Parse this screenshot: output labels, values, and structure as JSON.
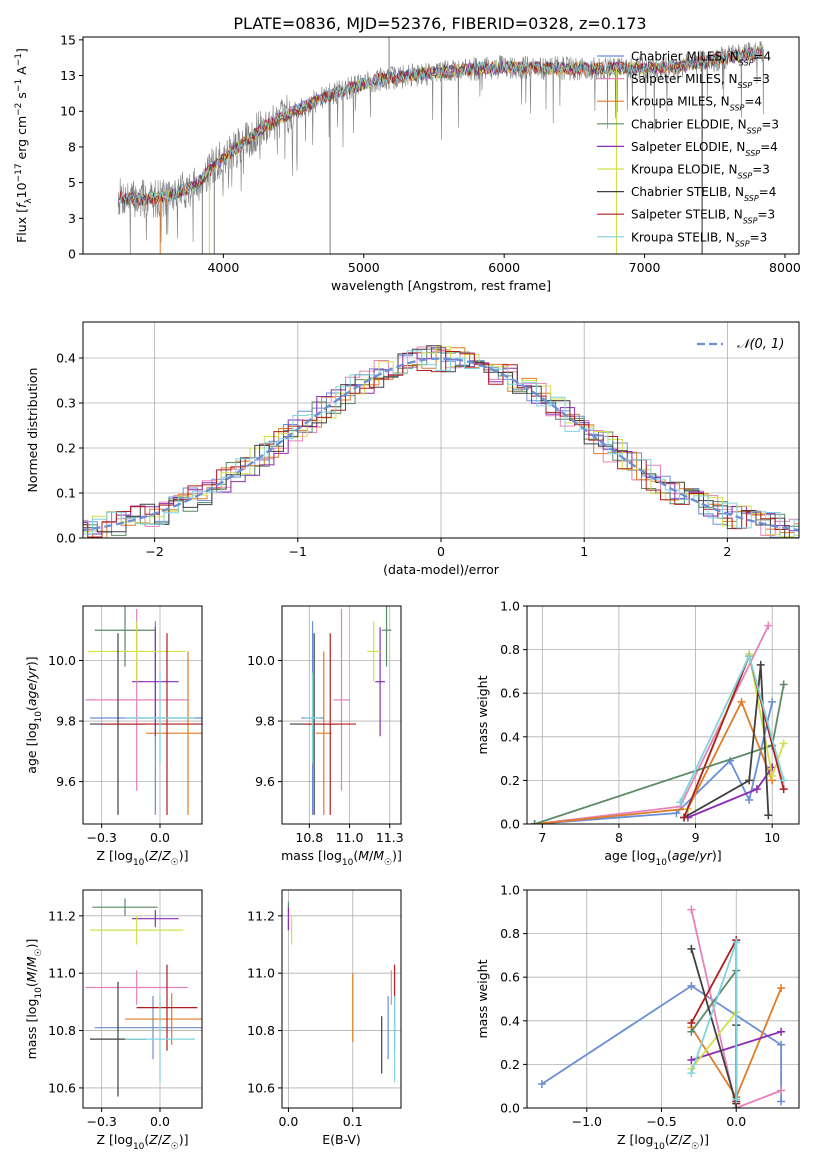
{
  "figure_title": "PLATE=0836, MJD=52376, FIBERID=0328, z=0.173",
  "series": [
    {
      "name": "Chabrier MILES",
      "nssp": "4",
      "color": "#6a8fd6"
    },
    {
      "name": "Salpeter MILES",
      "nssp": "3",
      "color": "#e583b9"
    },
    {
      "name": "Kroupa MILES",
      "nssp": "4",
      "color": "#e07b26"
    },
    {
      "name": "Chabrier ELODIE",
      "nssp": "3",
      "color": "#5b8a66"
    },
    {
      "name": "Salpeter ELODIE",
      "nssp": "4",
      "color": "#8c2bb4"
    },
    {
      "name": "Kroupa ELODIE",
      "nssp": "3",
      "color": "#d2e04a"
    },
    {
      "name": "Chabrier STELIB",
      "nssp": "4",
      "color": "#404040"
    },
    {
      "name": "Salpeter STELIB",
      "nssp": "3",
      "color": "#b01e1e"
    },
    {
      "name": "Kroupa STELIB",
      "nssp": "3",
      "color": "#7fd3dd"
    }
  ],
  "chart_data": [
    {
      "id": "spectrum",
      "type": "line",
      "xlabel": "wavelength [Angstrom, rest frame]",
      "ylabel": "Flux [f_λ 10^-17 erg cm^-2 s^-1 A^-1]",
      "xlim": [
        3000,
        8100
      ],
      "ylim": [
        0,
        15.2
      ],
      "xticks": [
        4000,
        5000,
        6000,
        7000,
        8000
      ],
      "yticks": [
        0.0,
        2.5,
        5.0,
        7.5,
        10.0,
        12.5,
        15.0
      ],
      "grid": false,
      "legend": "right",
      "observed_color": "#808080",
      "continuum": {
        "x": [
          3250,
          3400,
          3600,
          3800,
          3950,
          4100,
          4300,
          4500,
          4800,
          5100,
          5400,
          5700,
          6000,
          6300,
          6600,
          6900,
          7200,
          7500,
          7850
        ],
        "y": [
          4.0,
          3.8,
          4.0,
          4.8,
          6.3,
          7.4,
          9.0,
          10.0,
          11.3,
          12.2,
          12.6,
          12.9,
          13.1,
          13.0,
          13.0,
          13.0,
          13.1,
          13.6,
          14.2
        ]
      },
      "spikes": [
        {
          "x": 3850,
          "y": 0
        },
        {
          "x": 3935,
          "y": 0
        },
        {
          "x": 4760,
          "y": 0
        },
        {
          "x": 5180,
          "y": 16
        },
        {
          "x": 6800,
          "y": 0
        },
        {
          "x": 7410,
          "y": 0
        }
      ]
    },
    {
      "id": "residual_hist",
      "type": "histogram",
      "xlabel": "(data-model)/error",
      "ylabel": "Normed distribution",
      "xlim": [
        -2.5,
        2.5
      ],
      "ylim": [
        0,
        0.48
      ],
      "xticks": [
        -2,
        -1,
        0,
        1,
        2
      ],
      "yticks": [
        0.0,
        0.1,
        0.2,
        0.3,
        0.4
      ],
      "grid": true,
      "legend": "top-right",
      "gaussian_label": "N(0,1)",
      "gaussian_color": "#6a8fd6",
      "bin_width": 0.1
    },
    {
      "id": "age_vs_Z",
      "type": "errorbar",
      "xlabel": "Z [log10(Z/Z☉)]",
      "ylabel": "age [log10(age/yr)]",
      "xlim": [
        -0.33,
        0.18
      ],
      "ylim": [
        9.46,
        10.18
      ],
      "xticks": [
        -0.25,
        0.0
      ],
      "yticks": [
        9.6,
        9.8,
        10.0
      ],
      "grid": true,
      "points": [
        {
          "series": 0,
          "x": -0.02,
          "y": 9.81,
          "xerr": 0.28,
          "yerr": 0.32
        },
        {
          "series": 1,
          "x": -0.1,
          "y": 9.87,
          "xerr": 0.22,
          "yerr": 0.3
        },
        {
          "series": 2,
          "x": 0.12,
          "y": 9.76,
          "xerr": 0.18,
          "yerr": 0.27
        },
        {
          "series": 3,
          "x": -0.15,
          "y": 10.1,
          "xerr": 0.13,
          "yerr": 0.12
        },
        {
          "series": 4,
          "x": -0.02,
          "y": 9.93,
          "xerr": 0.1,
          "yerr": 0.18
        },
        {
          "series": 5,
          "x": -0.1,
          "y": 10.03,
          "xerr": 0.21,
          "yerr": 0.1
        },
        {
          "series": 6,
          "x": -0.18,
          "y": 9.79,
          "xerr": 0.12,
          "yerr": 0.3
        },
        {
          "series": 7,
          "x": 0.03,
          "y": 9.79,
          "xerr": 0.28,
          "yerr": 0.3
        },
        {
          "series": 8,
          "x": 0.0,
          "y": 9.81,
          "xerr": 0.15,
          "yerr": 0.15
        }
      ]
    },
    {
      "id": "age_vs_mass",
      "type": "errorbar",
      "xlabel": "mass [log10(M/M☉)]",
      "ylabel": "",
      "xlim": [
        10.58,
        11.32
      ],
      "ylim": [
        9.46,
        10.18
      ],
      "xticks": [
        10.75,
        11.0,
        11.25
      ],
      "yticks": [
        9.6,
        9.8,
        10.0
      ],
      "grid": true,
      "points": [
        {
          "series": 0,
          "x": 10.77,
          "y": 9.81,
          "xerr": 0.07,
          "yerr": 0.32
        },
        {
          "series": 1,
          "x": 10.95,
          "y": 9.87,
          "xerr": 0.05,
          "yerr": 0.3
        },
        {
          "series": 2,
          "x": 10.84,
          "y": 9.76,
          "xerr": 0.05,
          "yerr": 0.27
        },
        {
          "series": 3,
          "x": 11.23,
          "y": 10.1,
          "xerr": 0.03,
          "yerr": 0.12
        },
        {
          "series": 4,
          "x": 11.19,
          "y": 9.93,
          "xerr": 0.03,
          "yerr": 0.18
        },
        {
          "series": 5,
          "x": 11.15,
          "y": 10.03,
          "xerr": 0.04,
          "yerr": 0.1
        },
        {
          "series": 6,
          "x": 10.78,
          "y": 9.79,
          "xerr": 0.15,
          "yerr": 0.3
        },
        {
          "series": 7,
          "x": 10.88,
          "y": 9.79,
          "xerr": 0.16,
          "yerr": 0.3
        },
        {
          "series": 8,
          "x": 10.77,
          "y": 9.81,
          "xerr": 0.05,
          "yerr": 0.15
        }
      ]
    },
    {
      "id": "weight_vs_age",
      "type": "line",
      "xlabel": "age [log10(age/yr)]",
      "ylabel": "mass weight",
      "xlim": [
        6.8,
        10.35
      ],
      "ylim": [
        0,
        1.0
      ],
      "xticks": [
        7,
        8,
        9,
        10
      ],
      "yticks": [
        0.0,
        0.2,
        0.4,
        0.6,
        0.8,
        1.0
      ],
      "grid": true,
      "lines": [
        {
          "series": 0,
          "x": [
            6.9,
            8.75,
            9.45,
            9.7,
            10.0
          ],
          "y": [
            0.0,
            0.05,
            0.29,
            0.11,
            0.56
          ]
        },
        {
          "series": 1,
          "x": [
            6.9,
            8.8,
            9.95
          ],
          "y": [
            0.0,
            0.08,
            0.91
          ]
        },
        {
          "series": 2,
          "x": [
            6.9,
            8.9,
            9.6,
            10.0
          ],
          "y": [
            0.0,
            0.07,
            0.56,
            0.2
          ]
        },
        {
          "series": 3,
          "x": [
            6.9,
            10.0,
            10.15
          ],
          "y": [
            0.0,
            0.36,
            0.64
          ]
        },
        {
          "series": 4,
          "x": [
            8.9,
            9.8,
            10.0
          ],
          "y": [
            0.03,
            0.16,
            0.26
          ]
        },
        {
          "series": 5,
          "x": [
            8.9,
            9.7,
            10.0,
            10.15
          ],
          "y": [
            0.07,
            0.78,
            0.22,
            0.37
          ]
        },
        {
          "series": 6,
          "x": [
            8.85,
            9.7,
            9.85,
            9.95
          ],
          "y": [
            0.03,
            0.2,
            0.73,
            0.04
          ]
        },
        {
          "series": 7,
          "x": [
            8.85,
            9.7,
            10.15
          ],
          "y": [
            0.03,
            0.77,
            0.16
          ]
        },
        {
          "series": 8,
          "x": [
            8.8,
            9.7,
            10.15
          ],
          "y": [
            0.1,
            0.77,
            0.2
          ]
        }
      ]
    },
    {
      "id": "mass_vs_Z",
      "type": "errorbar",
      "xlabel": "Z [log10(Z/Z☉)]",
      "ylabel": "mass [log10(M/M☉)]",
      "xlim": [
        -0.33,
        0.18
      ],
      "ylim": [
        10.53,
        11.29
      ],
      "xticks": [
        -0.25,
        0.0
      ],
      "yticks": [
        10.6,
        10.8,
        11.0,
        11.2
      ],
      "grid": true,
      "points": [
        {
          "series": 0,
          "x": -0.03,
          "y": 10.81,
          "xerr": 0.25,
          "yerr": 0.11
        },
        {
          "series": 1,
          "x": -0.1,
          "y": 10.95,
          "xerr": 0.22,
          "yerr": 0.06
        },
        {
          "series": 2,
          "x": 0.05,
          "y": 10.84,
          "xerr": 0.2,
          "yerr": 0.09
        },
        {
          "series": 3,
          "x": -0.15,
          "y": 11.23,
          "xerr": 0.14,
          "yerr": 0.03
        },
        {
          "series": 4,
          "x": -0.02,
          "y": 11.19,
          "xerr": 0.1,
          "yerr": 0.03
        },
        {
          "series": 5,
          "x": -0.1,
          "y": 11.15,
          "xerr": 0.2,
          "yerr": 0.05
        },
        {
          "series": 6,
          "x": -0.18,
          "y": 10.77,
          "xerr": 0.12,
          "yerr": 0.2
        },
        {
          "series": 7,
          "x": 0.03,
          "y": 10.88,
          "xerr": 0.13,
          "yerr": 0.15
        },
        {
          "series": 8,
          "x": 0.0,
          "y": 10.77,
          "xerr": 0.15,
          "yerr": 0.15
        }
      ]
    },
    {
      "id": "mass_vs_ebv",
      "type": "errorbar",
      "xlabel": "E(B-V)",
      "ylabel": "",
      "xlim": [
        -0.01,
        0.175
      ],
      "ylim": [
        10.53,
        11.29
      ],
      "xticks": [
        0.0,
        0.1
      ],
      "yticks": [
        10.6,
        10.8,
        11.0,
        11.2
      ],
      "grid": true,
      "points": [
        {
          "series": 0,
          "x": 0.155,
          "y": 10.81,
          "xerr": 0,
          "yerr": 0.11
        },
        {
          "series": 1,
          "x": 0.16,
          "y": 10.95,
          "xerr": 0,
          "yerr": 0.06
        },
        {
          "series": 2,
          "x": 0.1,
          "y": 10.88,
          "xerr": 0,
          "yerr": 0.12
        },
        {
          "series": 3,
          "x": 0.0,
          "y": 11.2,
          "xerr": 0,
          "yerr": 0.05
        },
        {
          "series": 4,
          "x": 0.0,
          "y": 11.19,
          "xerr": 0,
          "yerr": 0.04
        },
        {
          "series": 5,
          "x": 0.005,
          "y": 11.15,
          "xerr": 0,
          "yerr": 0.05
        },
        {
          "series": 6,
          "x": 0.145,
          "y": 10.75,
          "xerr": 0,
          "yerr": 0.1
        },
        {
          "series": 7,
          "x": 0.165,
          "y": 10.88,
          "xerr": 0,
          "yerr": 0.15
        },
        {
          "series": 8,
          "x": 0.165,
          "y": 10.77,
          "xerr": 0,
          "yerr": 0.15
        }
      ]
    },
    {
      "id": "weight_vs_Z",
      "type": "line",
      "xlabel": "Z [log10(Z/Z☉)]",
      "ylabel": "mass weight",
      "xlim": [
        -1.4,
        0.42
      ],
      "ylim": [
        0,
        1.0
      ],
      "xticks": [
        -1.0,
        -0.5,
        0.0
      ],
      "yticks": [
        0.0,
        0.2,
        0.4,
        0.6,
        0.8,
        1.0
      ],
      "grid": true,
      "lines": [
        {
          "series": 0,
          "x": [
            -1.3,
            -0.3,
            0.3,
            0.3
          ],
          "y": [
            0.11,
            0.56,
            0.29,
            0.03
          ]
        },
        {
          "series": 1,
          "x": [
            -0.3,
            0.0,
            0.3
          ],
          "y": [
            0.91,
            0.0,
            0.08
          ]
        },
        {
          "series": 2,
          "x": [
            -0.3,
            0.0,
            0.3
          ],
          "y": [
            0.37,
            0.05,
            0.55
          ]
        },
        {
          "series": 3,
          "x": [
            -0.3,
            0.0,
            0.0
          ],
          "y": [
            0.35,
            0.63,
            0.0
          ]
        },
        {
          "series": 4,
          "x": [
            -0.3,
            0.3
          ],
          "y": [
            0.22,
            0.35
          ]
        },
        {
          "series": 5,
          "x": [
            -0.3,
            0.0
          ],
          "y": [
            0.18,
            0.44
          ]
        },
        {
          "series": 6,
          "x": [
            -0.3,
            0.0,
            0.0
          ],
          "y": [
            0.73,
            0.02,
            0.38
          ]
        },
        {
          "series": 7,
          "x": [
            -0.3,
            0.0,
            0.0
          ],
          "y": [
            0.39,
            0.77,
            0.03
          ]
        },
        {
          "series": 8,
          "x": [
            -0.3,
            0.0,
            0.0
          ],
          "y": [
            0.16,
            0.76,
            0.04
          ]
        }
      ]
    }
  ]
}
